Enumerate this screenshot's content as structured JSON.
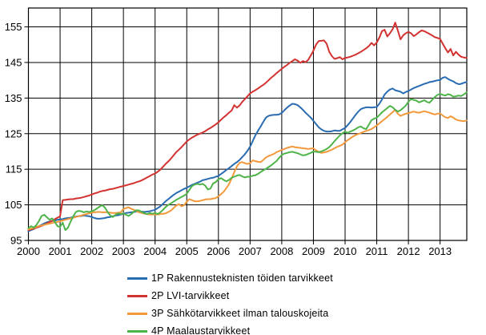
{
  "chart_data": {
    "type": "line",
    "title": "",
    "grid": true,
    "legend_position": "bottom-left",
    "x_axis": {
      "start_year": 2000,
      "points_per_year": 12,
      "tick_labels": [
        "2000",
        "2001",
        "2002",
        "2003",
        "2004",
        "2005",
        "2006",
        "2007",
        "2008",
        "2009",
        "2010",
        "2011",
        "2012",
        "2013"
      ]
    },
    "y_axis": {
      "tick_labels": [
        "95",
        "105",
        "115",
        "125",
        "135",
        "145",
        "155"
      ],
      "tick_values": [
        95,
        105,
        115,
        125,
        135,
        145,
        155
      ],
      "min": 95,
      "max": 160.3
    },
    "axis_color": "#000000",
    "series": [
      {
        "name": "1P Rakennusteknisten töiden tarvikkeet",
        "color": "#2A6CB1",
        "values": [
          97.6,
          97.9,
          98.2,
          98.6,
          99.0,
          99.4,
          99.8,
          100.1,
          100.3,
          100.5,
          100.6,
          100.8,
          100.9,
          101.0,
          101.2,
          101.3,
          101.4,
          101.6,
          101.7,
          101.8,
          101.9,
          102.0,
          101.9,
          101.8,
          101.6,
          101.3,
          101.1,
          101.1,
          101.2,
          101.3,
          101.5,
          101.6,
          101.8,
          102.0,
          102.1,
          102.3,
          102.5,
          102.7,
          102.8,
          102.9,
          103.0,
          103.1,
          103.2,
          103.1,
          103.0,
          103.1,
          103.2,
          103.4,
          103.6,
          104.1,
          104.6,
          105.3,
          106.0,
          106.6,
          107.2,
          107.8,
          108.3,
          108.7,
          109.1,
          109.5,
          109.8,
          110.2,
          110.6,
          110.9,
          111.2,
          111.5,
          111.9,
          112.1,
          112.3,
          112.5,
          112.6,
          112.9,
          113.1,
          113.7,
          114.2,
          114.8,
          115.3,
          115.9,
          116.5,
          117.0,
          117.6,
          118.4,
          119.2,
          120.2,
          121.3,
          122.9,
          124.5,
          125.8,
          127.0,
          128.3,
          129.5,
          130.0,
          130.2,
          130.3,
          130.3,
          130.4,
          130.8,
          131.6,
          132.3,
          132.9,
          133.4,
          133.3,
          133.0,
          132.4,
          131.7,
          130.9,
          130.2,
          129.5,
          128.6,
          127.7,
          126.8,
          126.2,
          125.8,
          125.6,
          125.6,
          125.7,
          125.9,
          125.8,
          125.8,
          126.2,
          126.6,
          127.4,
          128.3,
          129.3,
          130.3,
          131.2,
          131.9,
          132.2,
          132.4,
          132.4,
          132.3,
          132.4,
          132.5,
          133.4,
          134.6,
          136.0,
          136.8,
          137.4,
          137.7,
          137.2,
          137.0,
          136.8,
          136.3,
          136.7,
          137.0,
          137.4,
          137.8,
          138.1,
          138.4,
          138.7,
          139.0,
          139.2,
          139.5,
          139.6,
          139.8,
          140.0,
          140.1,
          140.7,
          140.9,
          140.4,
          140.0,
          139.7,
          139.2,
          138.9,
          139.0,
          139.3,
          139.5
        ]
      },
      {
        "name": "2P LVI-tarvikkeet",
        "color": "#D23230",
        "values": [
          97.9,
          98.1,
          98.3,
          98.6,
          98.8,
          99.1,
          99.4,
          99.8,
          100.2,
          100.5,
          101.0,
          101.4,
          101.8,
          106.3,
          106.4,
          106.5,
          106.6,
          106.6,
          106.8,
          106.9,
          107.0,
          107.2,
          107.4,
          107.6,
          107.9,
          108.2,
          108.4,
          108.7,
          108.9,
          109.0,
          109.2,
          109.4,
          109.5,
          109.7,
          109.9,
          110.1,
          110.3,
          110.5,
          110.7,
          110.9,
          111.1,
          111.4,
          111.6,
          111.9,
          112.3,
          112.7,
          113.1,
          113.5,
          113.8,
          114.3,
          114.9,
          115.7,
          116.5,
          117.2,
          118.0,
          118.9,
          119.8,
          120.5,
          121.2,
          122.0,
          122.8,
          123.4,
          123.9,
          124.3,
          124.7,
          125.0,
          125.3,
          125.7,
          126.2,
          126.6,
          127.1,
          127.6,
          128.2,
          128.9,
          129.6,
          130.2,
          130.9,
          131.5,
          133.0,
          132.3,
          132.9,
          133.9,
          134.7,
          135.5,
          136.3,
          136.8,
          137.2,
          137.7,
          138.2,
          138.7,
          139.3,
          140.0,
          140.7,
          141.3,
          142.0,
          142.6,
          143.2,
          143.8,
          144.3,
          144.9,
          145.4,
          145.9,
          145.5,
          144.9,
          145.4,
          145.1,
          145.7,
          147.0,
          148.3,
          150.0,
          151.0,
          151.1,
          151.2,
          150.3,
          148.0,
          146.8,
          146.0,
          146.2,
          146.5,
          145.9,
          146.3,
          146.4,
          146.6,
          146.9,
          147.2,
          147.6,
          148.0,
          148.5,
          149.0,
          149.6,
          150.5,
          149.8,
          150.6,
          152.0,
          153.8,
          154.2,
          152.3,
          153.2,
          154.3,
          156.2,
          154.0,
          151.5,
          152.6,
          153.2,
          153.6,
          153.2,
          152.4,
          152.9,
          153.5,
          154.0,
          153.8,
          153.4,
          153.0,
          152.6,
          152.1,
          151.9,
          151.6,
          150.3,
          149.0,
          147.8,
          148.8,
          147.0,
          148.0,
          147.2,
          146.6,
          146.4,
          146.3
        ]
      },
      {
        "name": "3P Sähkötarvikkeet ilman talouskojeita",
        "color": "#F2993B",
        "values": [
          98.1,
          98.3,
          98.5,
          98.8,
          99.0,
          99.2,
          99.4,
          99.6,
          99.7,
          99.9,
          100.1,
          100.2,
          100.4,
          100.6,
          100.8,
          101.0,
          101.2,
          101.4,
          101.6,
          101.8,
          102.0,
          102.2,
          102.4,
          102.6,
          102.8,
          102.9,
          103.0,
          103.0,
          102.9,
          102.9,
          102.9,
          102.8,
          102.7,
          102.7,
          102.8,
          102.9,
          103.8,
          104.1,
          104.3,
          103.9,
          103.6,
          103.2,
          102.9,
          102.7,
          102.5,
          102.4,
          102.3,
          102.3,
          102.3,
          102.3,
          102.4,
          102.5,
          102.6,
          103.0,
          103.4,
          104.1,
          104.8,
          105.2,
          104.6,
          104.9,
          105.9,
          106.6,
          106.3,
          106.0,
          106.0,
          106.1,
          106.3,
          106.5,
          106.6,
          106.6,
          106.8,
          106.9,
          107.4,
          108.0,
          108.7,
          109.7,
          110.8,
          112.4,
          114.2,
          115.8,
          116.8,
          117.0,
          116.7,
          116.5,
          116.7,
          117.5,
          117.3,
          117.1,
          117.0,
          117.6,
          118.3,
          118.7,
          119.0,
          119.3,
          119.8,
          120.1,
          120.4,
          120.7,
          121.0,
          121.2,
          121.4,
          121.2,
          121.1,
          121.0,
          120.9,
          120.8,
          120.7,
          120.8,
          120.9,
          120.3,
          119.9,
          119.6,
          119.7,
          119.9,
          120.2,
          120.5,
          120.9,
          121.3,
          121.6,
          121.9,
          122.6,
          123.2,
          123.7,
          124.2,
          124.6,
          124.9,
          125.2,
          125.5,
          125.8,
          126.0,
          126.3,
          126.8,
          127.3,
          127.9,
          128.5,
          129.1,
          129.7,
          130.4,
          131.0,
          131.7,
          130.6,
          130.0,
          130.3,
          130.6,
          130.8,
          131.0,
          131.2,
          131.0,
          130.9,
          131.1,
          131.3,
          131.1,
          130.9,
          130.6,
          130.4,
          130.6,
          130.7,
          130.1,
          129.6,
          129.4,
          129.9,
          129.5,
          129.0,
          128.7,
          128.6,
          128.5,
          128.7
        ]
      },
      {
        "name": "4P Maalaustarvikkeet",
        "color": "#4EB44A",
        "values": [
          98.4,
          99.0,
          98.6,
          99.3,
          100.5,
          101.9,
          102.2,
          101.5,
          100.8,
          101.2,
          100.2,
          99.0,
          98.8,
          100.0,
          97.9,
          98.6,
          100.3,
          101.8,
          103.0,
          103.3,
          103.2,
          102.9,
          103.1,
          103.0,
          103.2,
          103.5,
          104.0,
          104.5,
          104.9,
          104.2,
          103.0,
          102.0,
          101.6,
          102.2,
          102.6,
          102.4,
          102.6,
          102.2,
          101.9,
          102.4,
          103.1,
          103.5,
          103.4,
          103.0,
          102.6,
          102.4,
          102.7,
          102.5,
          102.7,
          102.4,
          102.9,
          103.6,
          104.4,
          105.0,
          105.4,
          105.9,
          106.4,
          106.8,
          107.2,
          107.6,
          108.1,
          109.2,
          110.3,
          110.7,
          110.9,
          110.7,
          110.9,
          110.4,
          109.3,
          109.6,
          111.0,
          111.4,
          112.2,
          112.5,
          112.0,
          111.6,
          112.0,
          112.6,
          112.9,
          113.2,
          113.4,
          113.0,
          112.7,
          112.9,
          112.9,
          113.2,
          113.3,
          113.7,
          114.2,
          114.7,
          115.1,
          115.6,
          116.1,
          116.7,
          117.3,
          118.2,
          119.0,
          119.4,
          119.6,
          119.8,
          119.9,
          119.7,
          119.5,
          119.2,
          118.9,
          119.0,
          119.3,
          119.6,
          120.0,
          119.9,
          119.8,
          120.0,
          120.3,
          120.7,
          121.2,
          122.0,
          122.9,
          123.7,
          124.5,
          125.1,
          125.6,
          125.2,
          125.6,
          125.9,
          126.3,
          126.8,
          127.0,
          126.5,
          126.3,
          127.5,
          128.8,
          129.2,
          129.5,
          130.2,
          131.0,
          131.6,
          132.2,
          132.8,
          132.4,
          131.7,
          131.2,
          131.6,
          132.2,
          132.9,
          134.0,
          134.7,
          134.5,
          134.3,
          133.8,
          134.1,
          134.4,
          133.9,
          133.7,
          134.5,
          135.3,
          135.9,
          136.2,
          135.9,
          135.7,
          136.1,
          135.9,
          135.4,
          135.5,
          135.7,
          135.6,
          136.0,
          136.6
        ]
      }
    ]
  }
}
